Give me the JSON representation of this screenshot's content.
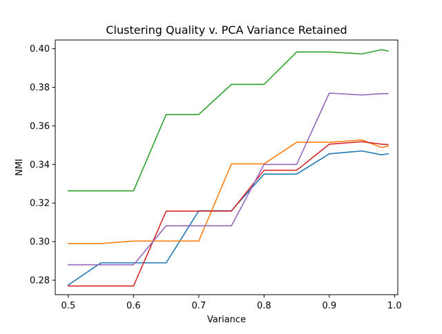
{
  "chart_data": {
    "type": "line",
    "title": "Clustering Quality v. PCA Variance Retained",
    "xlabel": "Variance",
    "ylabel": "NMI",
    "xlim": [
      0.48,
      1.005
    ],
    "ylim": [
      0.2725,
      0.4045
    ],
    "xticks": [
      0.5,
      0.6,
      0.7,
      0.8,
      0.9,
      1.0
    ],
    "xtick_labels": [
      "0.5",
      "0.6",
      "0.7",
      "0.8",
      "0.9",
      "1.0"
    ],
    "yticks": [
      0.28,
      0.3,
      0.32,
      0.34,
      0.36,
      0.38,
      0.4
    ],
    "ytick_labels": [
      "0.28",
      "0.30",
      "0.32",
      "0.34",
      "0.36",
      "0.38",
      "0.40"
    ],
    "grid": false,
    "legend": "none",
    "x": [
      0.5,
      0.55,
      0.6,
      0.65,
      0.7,
      0.75,
      0.8,
      0.85,
      0.9,
      0.95,
      0.98,
      0.99
    ],
    "series": [
      {
        "color": "#1f77b4",
        "values": [
          0.2775,
          0.289,
          0.289,
          0.289,
          0.316,
          0.316,
          0.335,
          0.335,
          0.3455,
          0.347,
          0.345,
          0.3455
        ]
      },
      {
        "color": "#ff7f0e",
        "values": [
          0.299,
          0.299,
          0.3003,
          0.3003,
          0.3003,
          0.3403,
          0.3403,
          0.3515,
          0.3515,
          0.3527,
          0.3488,
          0.3495
        ]
      },
      {
        "color": "#2ca02c",
        "values": [
          0.3263,
          0.3263,
          0.3263,
          0.3659,
          0.3659,
          0.3815,
          0.3815,
          0.3983,
          0.3983,
          0.3973,
          0.3995,
          0.3988
        ]
      },
      {
        "color": "#d62728",
        "values": [
          0.277,
          0.277,
          0.277,
          0.3158,
          0.3158,
          0.3158,
          0.337,
          0.337,
          0.3505,
          0.3518,
          0.3505,
          0.3503
        ]
      },
      {
        "color": "#9467bd",
        "values": [
          0.288,
          0.288,
          0.288,
          0.3082,
          0.3082,
          0.3082,
          0.34,
          0.34,
          0.377,
          0.376,
          0.3767,
          0.3767
        ]
      }
    ]
  }
}
